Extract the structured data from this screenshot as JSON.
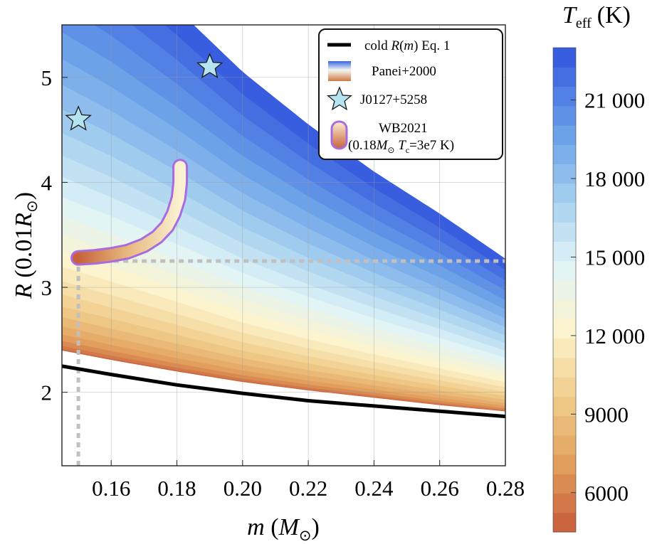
{
  "chart_data": {
    "type": "area",
    "xlabel": {
      "var": "m",
      "unit_open": " (",
      "unit": "M",
      "unit_sub": "⊙",
      "unit_close": ")"
    },
    "ylabel": {
      "var": "R",
      "unit_open": " (0.01",
      "unit": "R",
      "unit_sub": "⊙",
      "unit_close": ")"
    },
    "xlim": [
      0.145,
      0.28
    ],
    "ylim": [
      1.3,
      5.5
    ],
    "x_ticks": [
      0.16,
      0.18,
      0.2,
      0.22,
      0.24,
      0.26,
      0.28
    ],
    "x_tick_labels": [
      "0.16",
      "0.18",
      "0.20",
      "0.22",
      "0.24",
      "0.26",
      "0.28"
    ],
    "y_ticks": [
      2,
      3,
      4,
      5
    ],
    "y_tick_labels": [
      "2",
      "3",
      "4",
      "5"
    ],
    "grid": true,
    "legend_position": "top-right",
    "colorbar": {
      "title_var": "T",
      "title_sub": "eff",
      "title_unit": "(K)",
      "range": [
        4500,
        23000
      ],
      "ticks": [
        6000,
        9000,
        12000,
        15000,
        18000,
        21000
      ],
      "tick_labels": [
        "6000",
        "9000",
        "12 000",
        "15 000",
        "18 000",
        "21 000"
      ],
      "levels": 25
    },
    "series": [
      {
        "name": "cold R(m) Eq. 1",
        "legend_label": {
          "pre": "cold ",
          "var": "R",
          "mid": "(",
          "var2": "m",
          "post": ") Eq. 1"
        },
        "kind": "line",
        "color": "#000000",
        "x": [
          0.145,
          0.16,
          0.18,
          0.2,
          0.22,
          0.24,
          0.26,
          0.28
        ],
        "y": [
          2.25,
          2.17,
          2.07,
          1.99,
          1.92,
          1.87,
          1.82,
          1.77
        ]
      },
      {
        "name": "Panei+2000",
        "kind": "contour-band",
        "lower_boundary": {
          "x": [
            0.145,
            0.16,
            0.18,
            0.2,
            0.22,
            0.24,
            0.26,
            0.28
          ],
          "y": [
            2.4,
            2.31,
            2.2,
            2.1,
            2.02,
            1.95,
            1.88,
            1.82
          ]
        },
        "upper_boundary": {
          "x": [
            0.145,
            0.16,
            0.18,
            0.2,
            0.22,
            0.24,
            0.26,
            0.28
          ],
          "y": [
            6.55,
            6.2,
            5.65,
            5.05,
            4.55,
            4.1,
            3.7,
            3.27
          ]
        }
      },
      {
        "name": "J0127+5258",
        "kind": "marker",
        "marker": "star",
        "color": "#b5e3f0",
        "points": [
          {
            "x": 0.15,
            "y": 4.6
          },
          {
            "x": 0.19,
            "y": 5.1
          }
        ]
      },
      {
        "name": "WB2021",
        "legend_label": {
          "pre": "(0.18",
          "var": "M",
          "sub": "⊙",
          "mid": " ",
          "var2": "T",
          "sub2": "c",
          "post": "=3e7 K)"
        },
        "kind": "track",
        "color": "#a86be0",
        "x": [
          0.15,
          0.155,
          0.16,
          0.165,
          0.17,
          0.174,
          0.177,
          0.179,
          0.1805,
          0.181,
          0.181
        ],
        "y": [
          3.28,
          3.29,
          3.31,
          3.34,
          3.4,
          3.48,
          3.58,
          3.7,
          3.85,
          4.0,
          4.15
        ]
      }
    ],
    "reference_lines": [
      {
        "x": [
          0.15,
          0.15,
          0.28
        ],
        "y": [
          1.3,
          3.25,
          3.25
        ],
        "style": "dotted",
        "color": "#c0c0c0"
      }
    ]
  }
}
